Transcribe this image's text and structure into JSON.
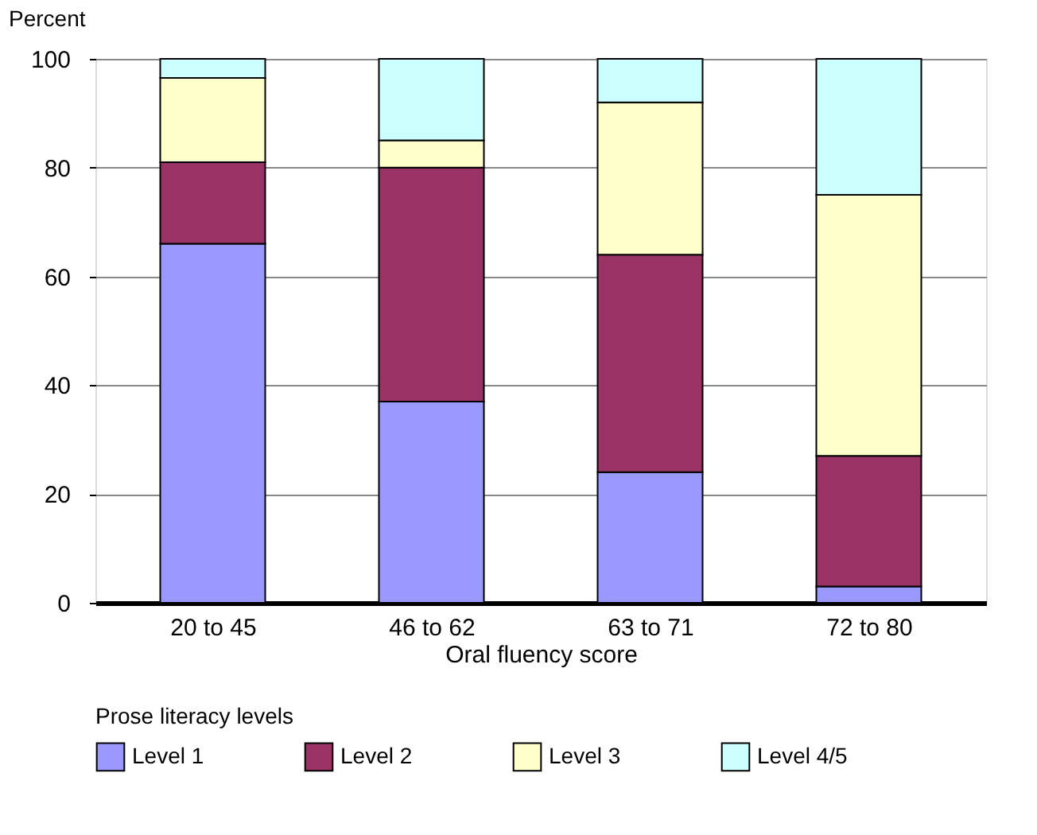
{
  "chart_data": {
    "type": "bar",
    "stacked": true,
    "xlabel": "Oral fluency score",
    "ylabel": "Percent",
    "legend_title": "Prose literacy levels",
    "legend": "bottom",
    "grid": "y",
    "categories": [
      "20 to 45",
      "46 to 62",
      "63 to 71",
      "72 to 80"
    ],
    "series": [
      {
        "name": "Level 1",
        "color": "#9999ff",
        "values": [
          66,
          37,
          24,
          3
        ]
      },
      {
        "name": "Level 2",
        "color": "#993366",
        "values": [
          15,
          43,
          40,
          24
        ]
      },
      {
        "name": "Level 3",
        "color": "#ffffcc",
        "values": [
          15.5,
          5,
          28,
          48
        ]
      },
      {
        "name": "Level 4/5",
        "color": "#ccffff",
        "values": [
          3.5,
          15,
          8,
          25
        ]
      }
    ],
    "ylim": [
      0,
      100
    ],
    "yticks": [
      0,
      20,
      40,
      60,
      80,
      100
    ]
  }
}
